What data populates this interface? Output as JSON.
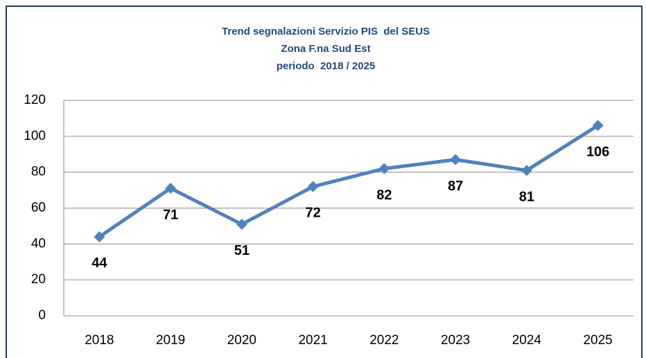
{
  "chart_data": {
    "type": "line",
    "title": [
      "Trend segnalazioni Servizio PIS  del SEUS",
      "Zona F.na Sud Est",
      "periodo  2018 / 2025"
    ],
    "categories": [
      "2018",
      "2019",
      "2020",
      "2021",
      "2022",
      "2023",
      "2024",
      "2025"
    ],
    "values": [
      44,
      71,
      51,
      72,
      82,
      87,
      81,
      106
    ],
    "color": "#4f81bd",
    "ylim": [
      0,
      120
    ],
    "yticks": [
      0,
      20,
      40,
      60,
      80,
      100,
      120
    ],
    "grid": true
  }
}
